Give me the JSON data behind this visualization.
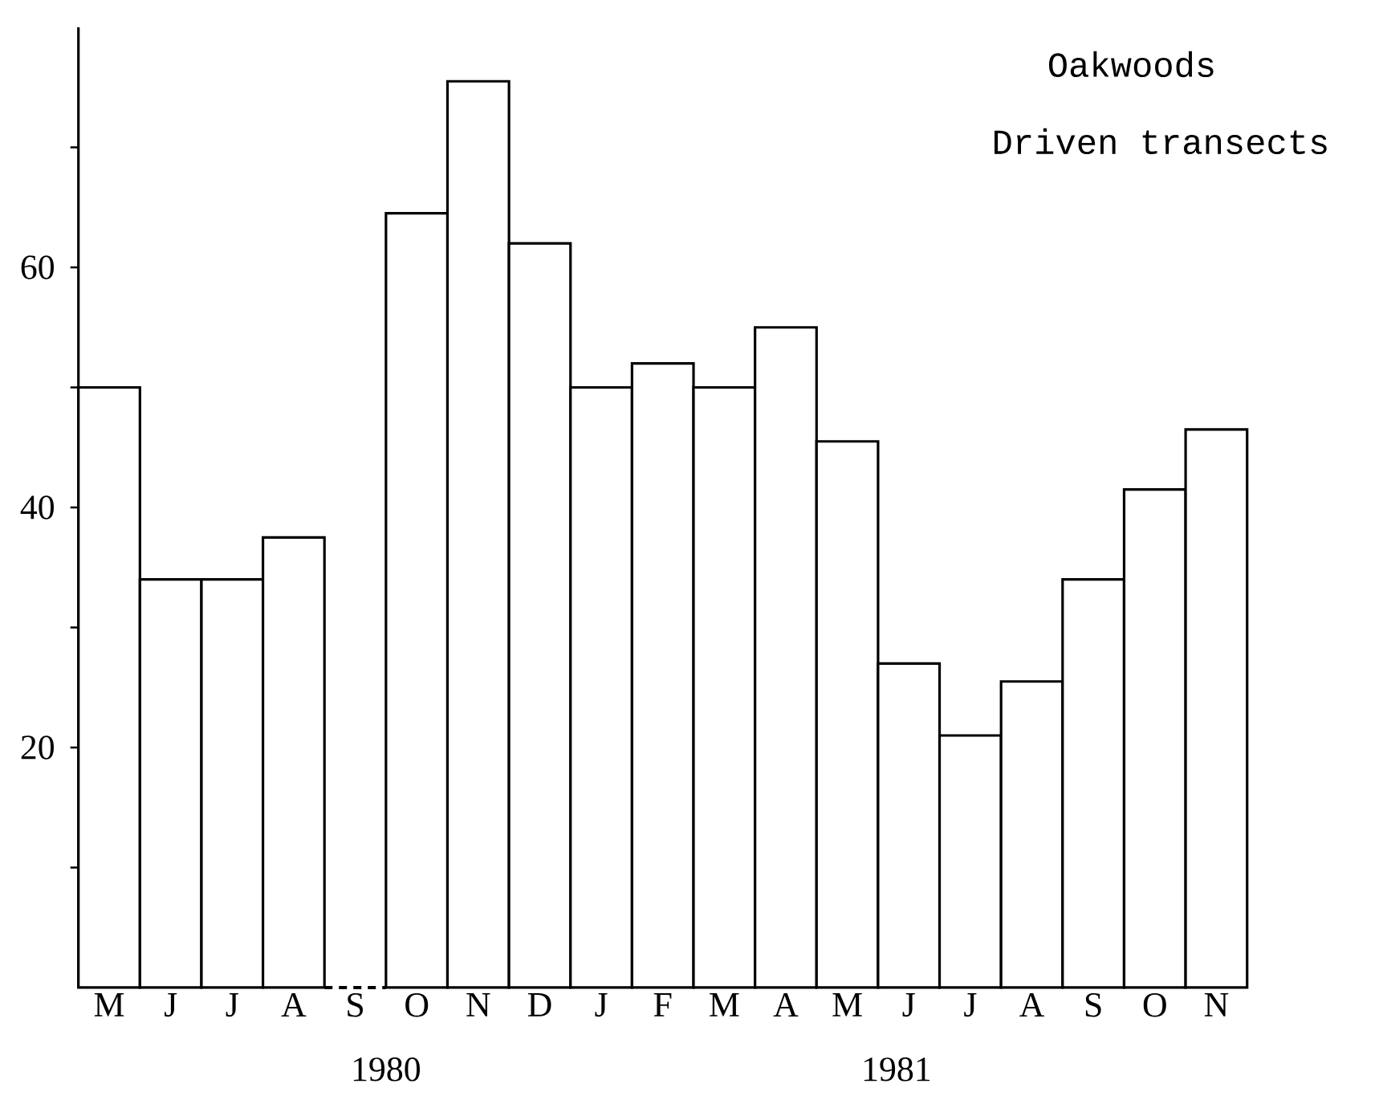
{
  "chart_data": {
    "type": "bar",
    "title": "Oakwoods",
    "subtitle": "Driven transects",
    "categories": [
      "M",
      "J",
      "J",
      "A",
      "S",
      "O",
      "N",
      "D",
      "J",
      "F",
      "M",
      "A",
      "M",
      "J",
      "J",
      "A",
      "S",
      "O",
      "N"
    ],
    "values": [
      50,
      34,
      34,
      37.5,
      null,
      64.5,
      75.5,
      62,
      50,
      52,
      50,
      55,
      45.5,
      27,
      21,
      25.5,
      34,
      41.5,
      46.5
    ],
    "color": "#ffffff",
    "ylim": [
      0,
      80
    ],
    "yticks": [
      {
        "value": 10,
        "label": null
      },
      20,
      {
        "value": 30,
        "label": null
      },
      40,
      {
        "value": 50,
        "label": null
      },
      60,
      {
        "value": 70,
        "label": null
      }
    ],
    "annotations": [
      "1980",
      "1981"
    ]
  }
}
